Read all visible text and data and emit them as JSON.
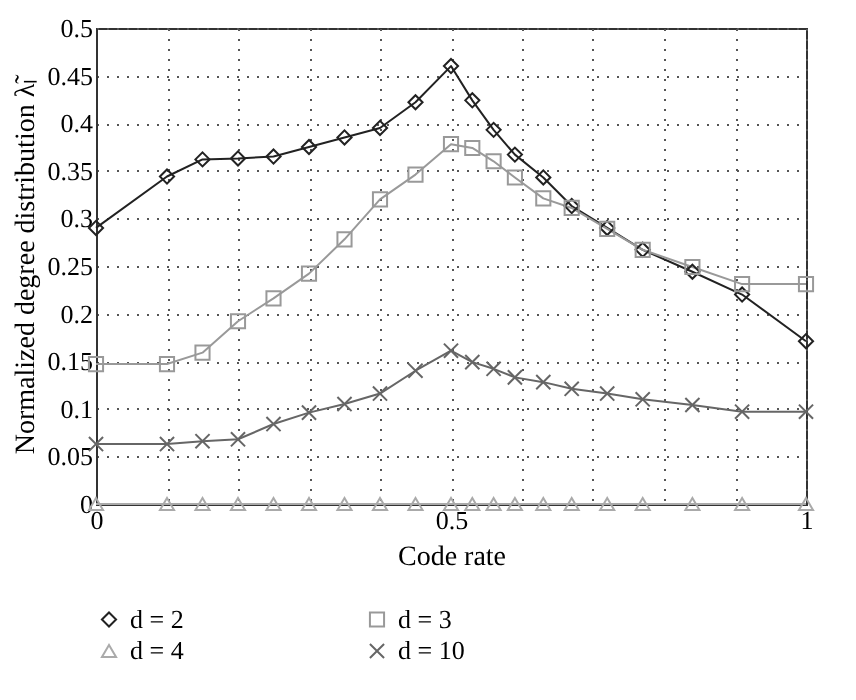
{
  "chart_data": {
    "type": "line",
    "xlabel": "Code rate",
    "ylabel": "Normalized degree distribution λ̃ₗ",
    "xlim": [
      0,
      1
    ],
    "ylim": [
      0,
      0.5
    ],
    "xticks": [
      0,
      {
        "value": 0.1,
        "label": null
      },
      {
        "value": 0.2,
        "label": null
      },
      {
        "value": 0.3,
        "label": null
      },
      {
        "value": 0.4,
        "label": null
      },
      0.5,
      {
        "value": 0.6,
        "label": null
      },
      {
        "value": 0.7,
        "label": null
      },
      {
        "value": 0.8,
        "label": null
      },
      {
        "value": 0.9,
        "label": null
      },
      1
    ],
    "yticks": [
      0,
      0.05,
      0.1,
      0.15,
      0.2,
      0.25,
      0.3,
      0.35,
      0.4,
      0.45,
      0.5
    ],
    "grid": true,
    "legend": "bottom",
    "line_style": "solid",
    "x": [
      0,
      0.1,
      0.15,
      0.2,
      0.25,
      0.3,
      0.35,
      0.4,
      0.45,
      0.5,
      0.53,
      0.56,
      0.59,
      0.63,
      0.67,
      0.72,
      0.77,
      0.84,
      0.91,
      1
    ],
    "series": [
      {
        "name": "d = 2",
        "color": "#222222",
        "marker": "diamond",
        "values": [
          0.29,
          0.344,
          0.362,
          0.363,
          0.365,
          0.375,
          0.385,
          0.395,
          0.422,
          0.46,
          0.424,
          0.393,
          0.367,
          0.343,
          0.313,
          0.29,
          0.267,
          0.244,
          0.22,
          0.171
        ]
      },
      {
        "name": "d = 3",
        "color": "#999999",
        "marker": "square",
        "values": [
          0.147,
          0.147,
          0.159,
          0.192,
          0.216,
          0.242,
          0.278,
          0.32,
          0.346,
          0.378,
          0.374,
          0.36,
          0.343,
          0.321,
          0.311,
          0.289,
          0.267,
          0.249,
          0.231,
          0.231
        ]
      },
      {
        "name": "d = 4",
        "color": "#aaaaaa",
        "marker": "triangle",
        "values": [
          0,
          0,
          0,
          0,
          0,
          0,
          0,
          0,
          0,
          0,
          0,
          0,
          0,
          0,
          0,
          0,
          0,
          0,
          0,
          0
        ]
      },
      {
        "name": "d = 10",
        "color": "#666666",
        "marker": "cross",
        "values": [
          0.063,
          0.063,
          0.066,
          0.068,
          0.084,
          0.096,
          0.105,
          0.116,
          0.14,
          0.161,
          0.149,
          0.142,
          0.133,
          0.128,
          0.121,
          0.116,
          0.11,
          0.104,
          0.097,
          0.097
        ]
      }
    ]
  }
}
